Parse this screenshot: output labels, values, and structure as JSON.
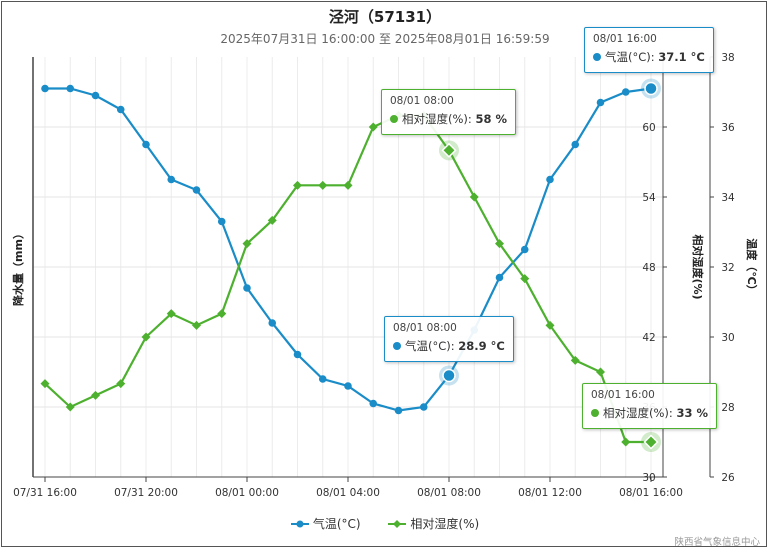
{
  "title": "泾河（57131）",
  "subtitle": "2025年07月31日 16:00:00 至 2025年08月01日 16:59:59",
  "credit": "陕西省气象信息中心",
  "colors": {
    "temperature": "#1a8cc7",
    "humidity": "#4db02e"
  },
  "chart_data": {
    "type": "line",
    "x": [
      "07/31 16:00",
      "07/31 17:00",
      "07/31 18:00",
      "07/31 19:00",
      "07/31 20:00",
      "07/31 21:00",
      "07/31 22:00",
      "07/31 23:00",
      "08/01 00:00",
      "08/01 01:00",
      "08/01 02:00",
      "08/01 03:00",
      "08/01 04:00",
      "08/01 05:00",
      "08/01 06:00",
      "08/01 07:00",
      "08/01 08:00",
      "08/01 09:00",
      "08/01 10:00",
      "08/01 11:00",
      "08/01 12:00",
      "08/01 13:00",
      "08/01 14:00",
      "08/01 15:00",
      "08/01 16:00"
    ],
    "x_tick_labels": [
      "07/31 16:00",
      "07/31 20:00",
      "08/01 00:00",
      "08/01 04:00",
      "08/01 08:00",
      "08/01 12:00",
      "08/01 16:00"
    ],
    "x_tick_indices": [
      0,
      4,
      8,
      12,
      16,
      20,
      24
    ],
    "series": [
      {
        "name": "气温(°C)",
        "axis": "right",
        "marker": "circle",
        "values": [
          37.1,
          37.1,
          36.9,
          36.5,
          35.5,
          34.5,
          34.2,
          33.3,
          31.4,
          30.4,
          29.5,
          28.8,
          28.6,
          28.1,
          27.9,
          28.0,
          28.9,
          30.2,
          31.7,
          32.5,
          34.5,
          35.5,
          36.7,
          37.0,
          37.1
        ]
      },
      {
        "name": "相对湿度(%)",
        "axis": "left",
        "marker": "diamond",
        "values": [
          38,
          36,
          37,
          38,
          42,
          44,
          43,
          44,
          50,
          52,
          55,
          55,
          55,
          60,
          61,
          61,
          58,
          54,
          50,
          47,
          43,
          40,
          39,
          33,
          33
        ]
      }
    ],
    "ylabel_left": "降水量（mm）",
    "ylabel_mid": "相对湿度(%)",
    "ylabel_right": "温度（℃）",
    "yticks_left": [
      30,
      36,
      42,
      48,
      54,
      60
    ],
    "ylim_left": [
      30,
      66
    ],
    "yticks_right": [
      26,
      28,
      30,
      32,
      34,
      36,
      38
    ],
    "ylim_right": [
      26,
      38
    ],
    "grid": true,
    "legend_position": "bottom-center"
  },
  "tooltips": [
    {
      "time": "08/01 16:00",
      "label": "气温(°C)",
      "value": "37.1 °C",
      "series": 0,
      "index": 24
    },
    {
      "time": "08/01 08:00",
      "label": "相对湿度(%)",
      "value": "58 %",
      "series": 1,
      "index": 16
    },
    {
      "time": "08/01 08:00",
      "label": "气温(°C)",
      "value": "28.9 °C",
      "series": 0,
      "index": 16
    },
    {
      "time": "08/01 16:00",
      "label": "相对湿度(%)",
      "value": "33 %",
      "series": 1,
      "index": 24
    }
  ]
}
